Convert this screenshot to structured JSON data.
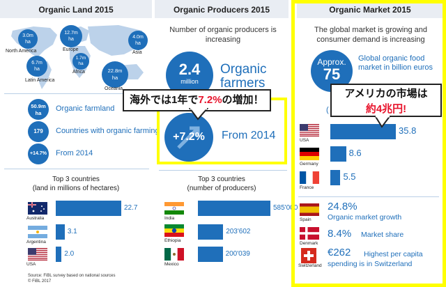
{
  "left": {
    "title": "Organic Land 2015",
    "map_regions": [
      {
        "value": "3.0m",
        "unit": "ha",
        "label": "North America"
      },
      {
        "value": "12.7m",
        "unit": "ha",
        "label": "Europe"
      },
      {
        "value": "4.0m",
        "unit": "ha",
        "label": "Asia"
      },
      {
        "value": "6.7m",
        "unit": "ha",
        "label": "Latin America"
      },
      {
        "value": "1.7m",
        "unit": "ha",
        "label": "Africa"
      },
      {
        "value": "22.8m",
        "unit": "ha",
        "label": "Oceania"
      }
    ],
    "stats": [
      {
        "circle": "50.9m",
        "circle_unit": "ha",
        "text": "Organic farmland"
      },
      {
        "circle": "179",
        "circle_unit": "",
        "text": "Countries with organic farming"
      },
      {
        "circle": "+14.7%",
        "circle_unit": "",
        "text": "From 2014"
      }
    ],
    "top3_title": "Top 3 countries",
    "top3_subtitle": "(land in millions of hectares)",
    "source": "Source: FiBL survey based on national sources",
    "copyright": "© FiBL 2017"
  },
  "middle": {
    "title": "Organic Producers 2015",
    "subtitle": "Number of organic producers is increasing",
    "big_circle_value": "2.4",
    "big_circle_unit": "million",
    "big_text": "Organic farmers",
    "growth_value": "+7.2%",
    "growth_text": "From 2014",
    "top3_title": "Top 3 countries",
    "top3_subtitle": "(number of producers)"
  },
  "right": {
    "title": "Organic Market 2015",
    "subtitle": "The global market is growing and consumer demand is increasing",
    "circle_top": "Approx.",
    "circle_value": "75",
    "circle_text": "Global organic food market in billion euros",
    "stats": [
      {
        "value": "24.8%",
        "text": "Organic market growth",
        "country": "Spain"
      },
      {
        "value": "8.4%",
        "text": "Market share",
        "country": "Denmark"
      },
      {
        "value": "€262",
        "text": "Highest per capita spending is in Switzerland",
        "country": "Switzerland"
      }
    ]
  },
  "callouts": {
    "middle_text_before": "海外では1年で",
    "middle_text_red": "7.2%",
    "middle_text_after": "の増加！",
    "right_line1": "アメリカの市場は",
    "right_line2": "約4兆円!"
  },
  "colors": {
    "accent": "#1f6fba",
    "highlight": "#ffff00",
    "callout_red": "#e8142c"
  },
  "chart_data": [
    {
      "type": "bar",
      "title": "Top 3 countries",
      "subtitle": "(land in millions of hectares)",
      "categories": [
        "Australia",
        "Argentina",
        "USA"
      ],
      "values": [
        22.7,
        3.1,
        2.0
      ],
      "labels": [
        "22.7",
        "3.1",
        "2.0"
      ]
    },
    {
      "type": "bar",
      "title": "Top 3 countries",
      "subtitle": "(number of producers)",
      "categories": [
        "India",
        "Ethiopia",
        "Mexico"
      ],
      "values": [
        585000,
        203602,
        200039
      ],
      "labels": [
        "585'000",
        "203'602",
        "200'039"
      ]
    },
    {
      "type": "bar",
      "title": "Organic Market 2015",
      "categories": [
        "USA",
        "Germany",
        "France"
      ],
      "values": [
        35.8,
        8.6,
        5.5
      ],
      "labels": [
        "35.8",
        "8.6",
        "5.5"
      ]
    }
  ]
}
